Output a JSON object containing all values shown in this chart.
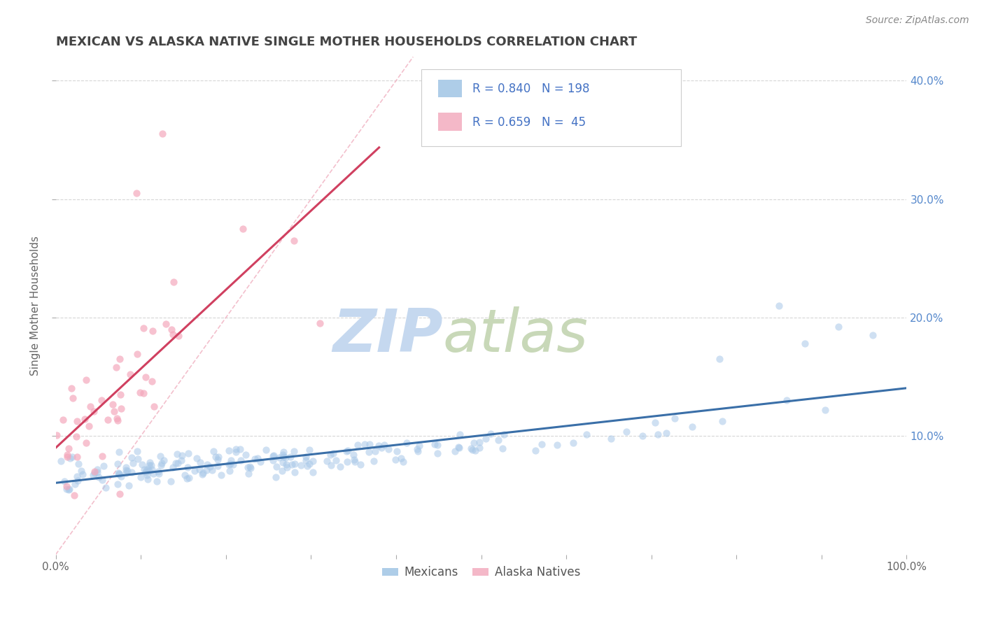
{
  "title": "MEXICAN VS ALASKA NATIVE SINGLE MOTHER HOUSEHOLDS CORRELATION CHART",
  "source": "Source: ZipAtlas.com",
  "ylabel": "Single Mother Households",
  "legend_labels": [
    "Mexicans",
    "Alaska Natives"
  ],
  "mexican_R": 0.84,
  "mexican_N": 198,
  "alaskan_R": 0.659,
  "alaskan_N": 45,
  "mexican_color": "#a8c8e8",
  "alaskan_color": "#f4a8bc",
  "mexican_line_color": "#3a6fa8",
  "alaskan_line_color": "#d04060",
  "diagonal_color": "#f0b0c0",
  "background_color": "#ffffff",
  "grid_color": "#cccccc",
  "title_color": "#444444",
  "legend_text_color": "#4472c4",
  "watermark_zip_color": "#c8d8ec",
  "watermark_atlas_color": "#c8d8c8",
  "xlim": [
    0.0,
    1.0
  ],
  "ylim": [
    0.0,
    0.42
  ],
  "seed": 42
}
